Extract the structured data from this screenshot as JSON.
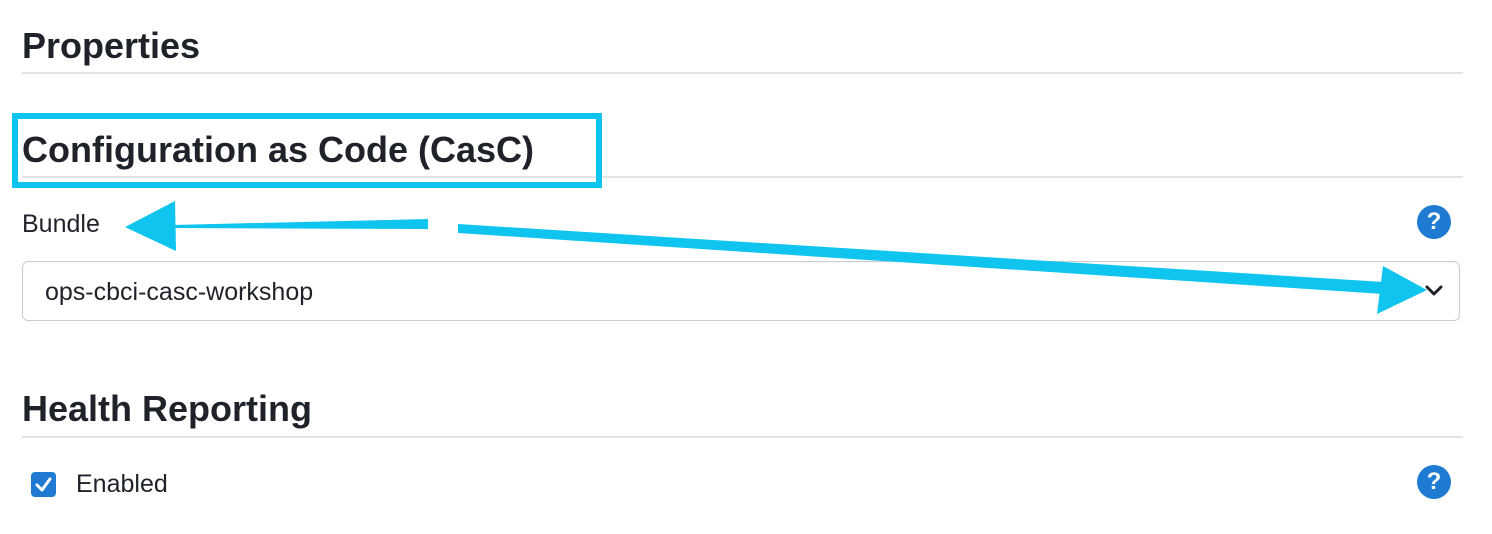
{
  "sections": {
    "properties_title": "Properties",
    "casc_title": "Configuration as Code (CasC)",
    "health_title": "Health Reporting"
  },
  "bundle": {
    "label": "Bundle",
    "selected_value": "ops-cbci-casc-workshop",
    "help_glyph": "?"
  },
  "health": {
    "enabled_label": "Enabled",
    "enabled_checked": true,
    "help_glyph": "?"
  },
  "annotations": {
    "highlight_color": "#10c4f0",
    "arrow_color": "#10c4f0"
  },
  "colors": {
    "accent": "#1f7bd1",
    "text": "#1f2329",
    "divider": "#e1e3e6"
  },
  "icons": {
    "help": "question-circle-icon",
    "select_caret": "chevron-down-icon",
    "checkbox": "checkmark-icon"
  }
}
